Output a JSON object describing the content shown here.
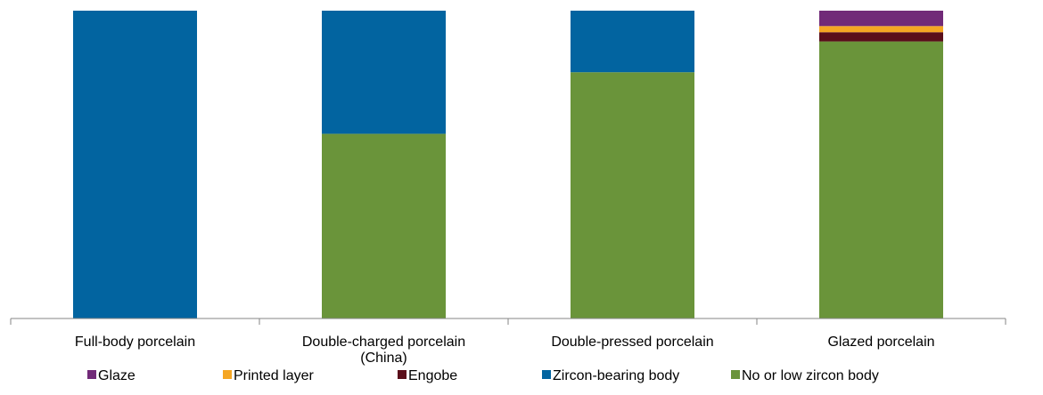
{
  "chart_data": {
    "type": "bar",
    "stacked": true,
    "categories": [
      [
        "Full-body porcelain"
      ],
      [
        "Double-charged porcelain",
        "(China)"
      ],
      [
        "Double-pressed porcelain"
      ],
      [
        "Glazed porcelain"
      ]
    ],
    "ylim": [
      0,
      100
    ],
    "grid": false,
    "legend_position": "bottom",
    "series": [
      {
        "name": "No or low zircon body",
        "color": "#6a943a",
        "values": [
          0,
          60,
          80,
          90
        ]
      },
      {
        "name": "Engobe",
        "color": "#5a0e1a",
        "values": [
          0,
          0,
          0,
          3
        ]
      },
      {
        "name": "Printed layer",
        "color": "#f5a623",
        "values": [
          0,
          0,
          0,
          2
        ]
      },
      {
        "name": "Zircon-bearing body",
        "color": "#0264a0",
        "values": [
          100,
          40,
          20,
          0
        ]
      },
      {
        "name": "Glaze",
        "color": "#712a78",
        "values": [
          0,
          0,
          0,
          5
        ]
      }
    ],
    "legend_order": [
      "Glaze",
      "Printed layer",
      "Engobe",
      "Zircon-bearing body",
      "No or low zircon body"
    ]
  }
}
